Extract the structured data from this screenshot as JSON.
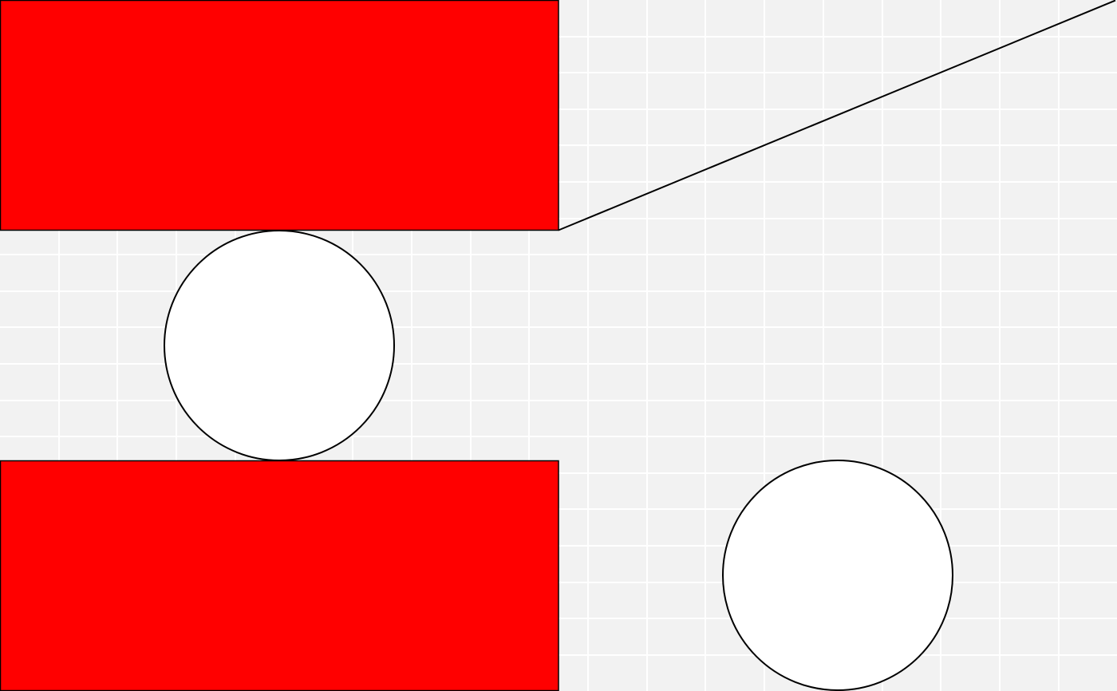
{
  "canvas": {
    "background_color": "#f2f2f2",
    "grid_color": "#ffffff",
    "grid": true
  },
  "shapes": {
    "rect_fill": "#ff0000",
    "circle_fill": "#ffffff",
    "stroke_color": "#000000"
  }
}
